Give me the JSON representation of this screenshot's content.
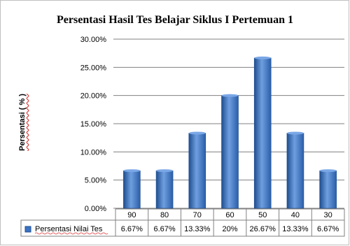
{
  "chart_data": {
    "type": "bar",
    "title": "Persentasi Hasil Tes Belajar Siklus I Pertemuan 1",
    "ylabel": "Persentasi ( % )",
    "xlabel": "",
    "categories": [
      "90",
      "80",
      "70",
      "60",
      "50",
      "40",
      "30"
    ],
    "series": [
      {
        "name": "Persentasi Nilai Tes",
        "values": [
          6.67,
          6.67,
          13.33,
          20,
          26.67,
          13.33,
          6.67
        ],
        "labels": [
          "6.67%",
          "6.67%",
          "13.33%",
          "20%",
          "26.67%",
          "13.33%",
          "6.67%"
        ]
      }
    ],
    "yticks": [
      "0.00%",
      "5.00%",
      "10.00%",
      "15.00%",
      "20.00%",
      "25.00%",
      "30.00%"
    ],
    "ylim": [
      0,
      30
    ],
    "grid": true,
    "legend": "left of data table",
    "colors": {
      "bar": "#3a72c4",
      "bar_dark": "#1f4e8f",
      "bar_light": "#7aa7e6",
      "grid": "#808080"
    }
  }
}
